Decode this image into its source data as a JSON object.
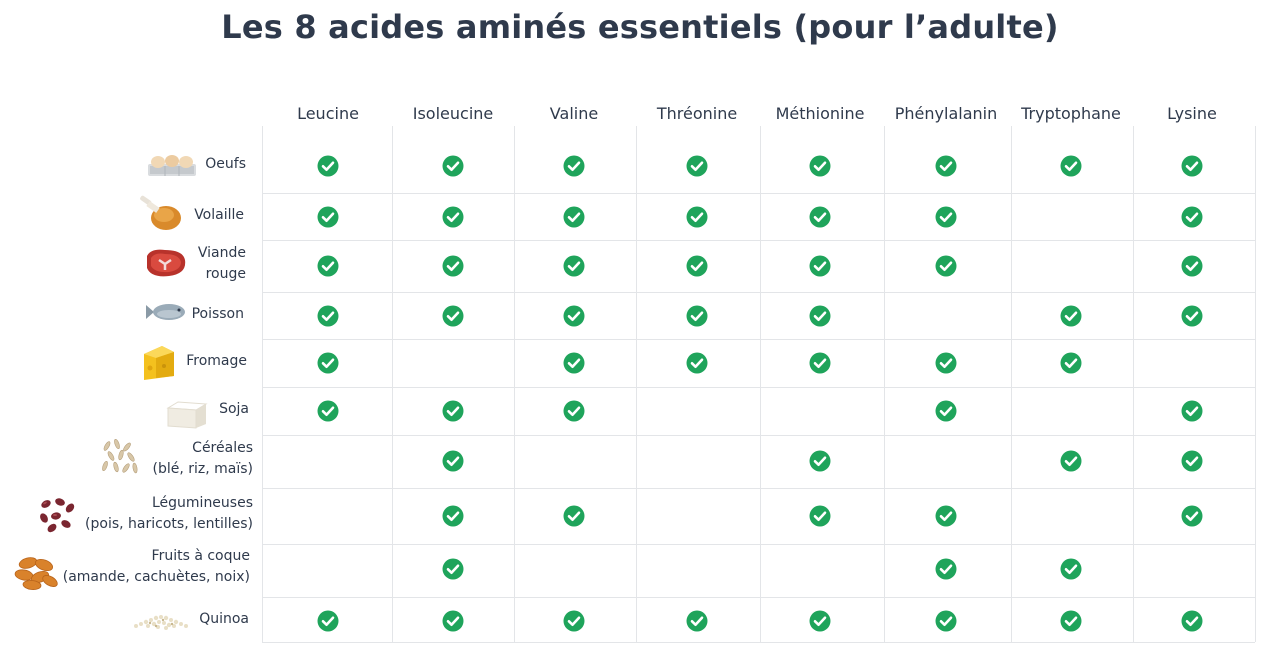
{
  "title": "Les 8 acides aminés essentiels (pour l’adulte)",
  "colors": {
    "check": "#1fa45b",
    "text": "#2f3a4c",
    "grid": "#e3e5e8"
  },
  "amino_acids": [
    "Leucine",
    "Isoleucine",
    "Valine",
    "Thréonine",
    "Méthionine",
    "Phénylalanin",
    "Tryptophane",
    "Lysine"
  ],
  "foods": [
    {
      "label": "Oeufs",
      "icon": "eggs-icon",
      "has": [
        1,
        1,
        1,
        1,
        1,
        1,
        1,
        1
      ]
    },
    {
      "label": "Volaille",
      "icon": "chicken-leg-icon",
      "has": [
        1,
        1,
        1,
        1,
        1,
        1,
        0,
        1
      ]
    },
    {
      "label": "Viande\nrouge",
      "icon": "steak-icon",
      "has": [
        1,
        1,
        1,
        1,
        1,
        1,
        0,
        1
      ]
    },
    {
      "label": "Poisson",
      "icon": "fish-icon",
      "has": [
        1,
        1,
        1,
        1,
        1,
        0,
        1,
        1
      ]
    },
    {
      "label": "Fromage",
      "icon": "cheese-icon",
      "has": [
        1,
        0,
        1,
        1,
        1,
        1,
        1,
        0
      ]
    },
    {
      "label": "Soja",
      "icon": "tofu-icon",
      "has": [
        1,
        1,
        1,
        0,
        0,
        1,
        0,
        1
      ]
    },
    {
      "label": "Céréales\n(blé, riz, maïs)",
      "icon": "grains-icon",
      "has": [
        0,
        1,
        0,
        0,
        1,
        0,
        1,
        1
      ]
    },
    {
      "label": "Légumineuses\n(pois, haricots, lentilles)",
      "icon": "beans-icon",
      "has": [
        0,
        1,
        1,
        0,
        1,
        1,
        0,
        1
      ]
    },
    {
      "label": "Fruits à coque\n(amande, cachuètes, noix)",
      "icon": "almonds-icon",
      "has": [
        0,
        1,
        0,
        0,
        0,
        1,
        1,
        0
      ]
    },
    {
      "label": "Quinoa",
      "icon": "quinoa-icon",
      "has": [
        1,
        1,
        1,
        1,
        1,
        1,
        1,
        1
      ]
    }
  ]
}
